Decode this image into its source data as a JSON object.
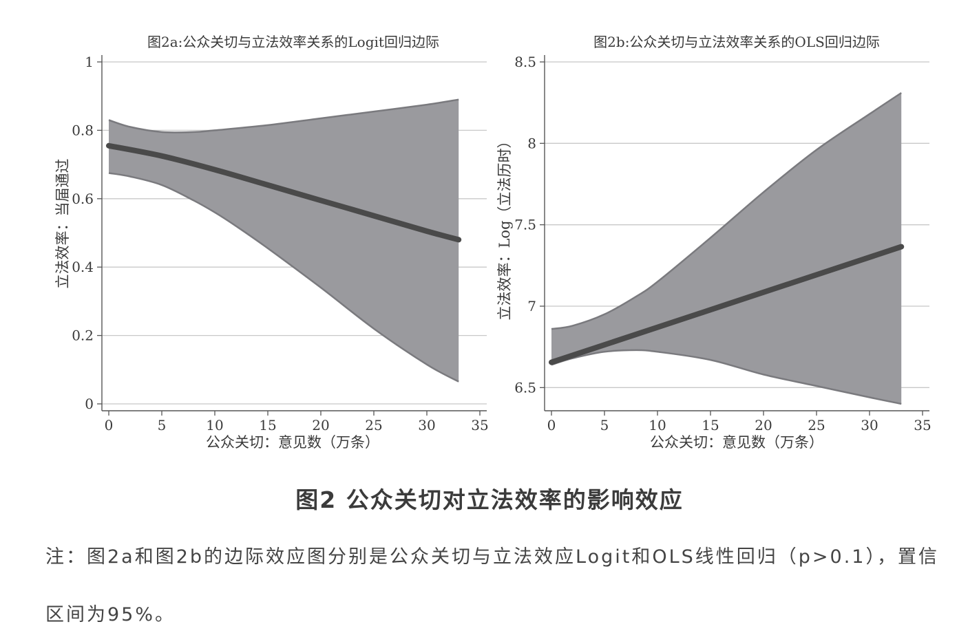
{
  "caption": "图2 公众关切对立法效率的影响效应",
  "note": "注：图2a和图2b的边际效应图分别是公众关切与立法效应Logit和OLS线性回归（p>0.1），置信区间为95%。",
  "colors": {
    "band": "#9a9a9e",
    "band_edge": "#7a7a7e",
    "line": "#4a4a4a",
    "grid": "#c8c8c8",
    "axis": "#555555"
  },
  "chart_data": [
    {
      "type": "line",
      "title": "图2a:公众关切与立法效率关系的Logit回归边际",
      "xlabel": "公众关切：意见数（万条）",
      "ylabel": "立法效率：当届通过",
      "xlim": [
        0,
        35
      ],
      "ylim": [
        0,
        1
      ],
      "xticks": [
        "0",
        "5",
        "10",
        "15",
        "20",
        "25",
        "30",
        "35"
      ],
      "yticks": [
        "0",
        "0.2",
        "0.4",
        "0.6",
        "0.8",
        "1"
      ],
      "grid": true,
      "series": [
        {
          "role": "estimate",
          "x": [
            0,
            5,
            10,
            15,
            20,
            25,
            30,
            33
          ],
          "values": [
            0.755,
            0.725,
            0.685,
            0.64,
            0.595,
            0.55,
            0.505,
            0.48
          ]
        },
        {
          "role": "upper",
          "x": [
            0,
            2,
            5,
            8,
            10,
            15,
            20,
            25,
            30,
            33
          ],
          "values": [
            0.83,
            0.81,
            0.795,
            0.795,
            0.8,
            0.815,
            0.835,
            0.855,
            0.875,
            0.89
          ]
        },
        {
          "role": "lower",
          "x": [
            0,
            2,
            5,
            8,
            10,
            12,
            15,
            20,
            25,
            30,
            33
          ],
          "values": [
            0.675,
            0.665,
            0.64,
            0.595,
            0.56,
            0.52,
            0.455,
            0.34,
            0.22,
            0.115,
            0.065
          ]
        }
      ]
    },
    {
      "type": "line",
      "title": "图2b:公众关切与立法效率关系的OLS回归边际",
      "xlabel": "公众关切：意见数（万条）",
      "ylabel": "立法效率：Log（立法历时）",
      "xlim": [
        0,
        35
      ],
      "ylim": [
        6.4,
        8.5
      ],
      "xticks": [
        "0",
        "5",
        "10",
        "15",
        "20",
        "25",
        "30",
        "35"
      ],
      "yticks": [
        "6.5",
        "7",
        "7.5",
        "8",
        "8.5"
      ],
      "grid": true,
      "series": [
        {
          "role": "estimate",
          "x": [
            0,
            33
          ],
          "values": [
            6.655,
            7.365
          ]
        },
        {
          "role": "upper",
          "x": [
            0,
            2,
            5,
            8,
            10,
            15,
            20,
            25,
            30,
            33
          ],
          "values": [
            6.86,
            6.88,
            6.95,
            7.06,
            7.15,
            7.42,
            7.7,
            7.96,
            8.18,
            8.31
          ]
        },
        {
          "role": "lower",
          "x": [
            0,
            2,
            5,
            8,
            10,
            15,
            20,
            25,
            30,
            33
          ],
          "values": [
            6.64,
            6.68,
            6.72,
            6.73,
            6.72,
            6.67,
            6.58,
            6.51,
            6.44,
            6.4
          ]
        }
      ]
    }
  ]
}
